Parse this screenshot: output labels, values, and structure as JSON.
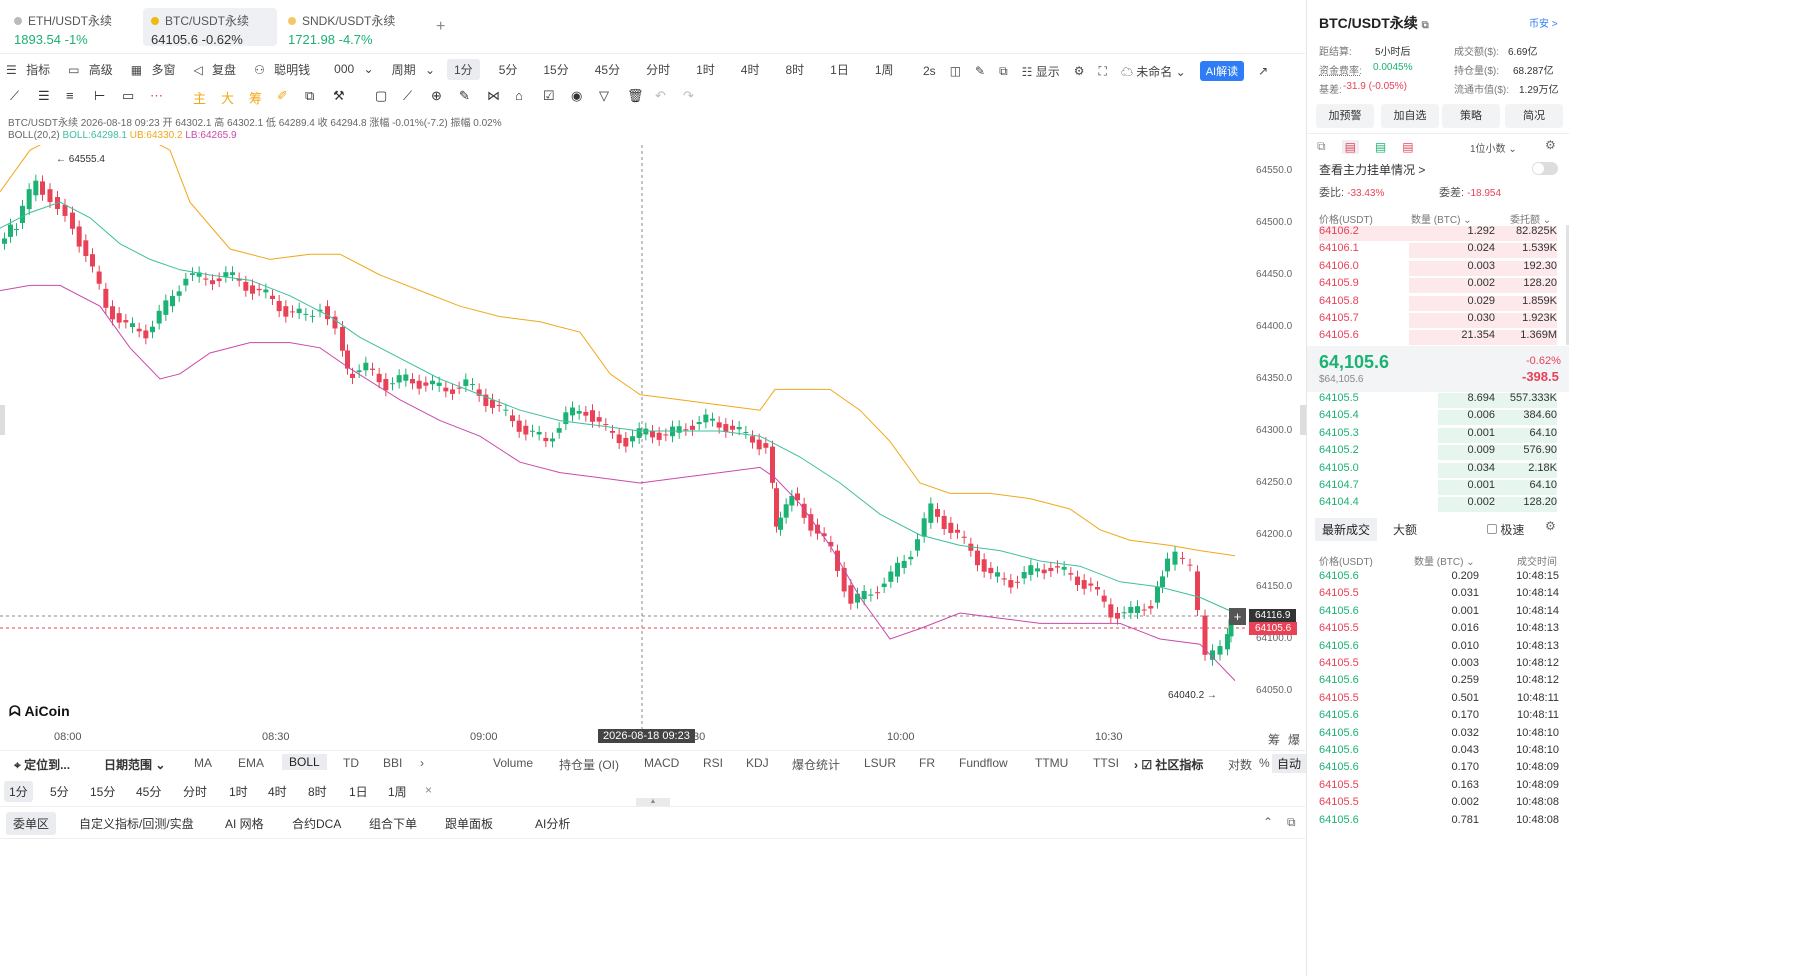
{
  "tabs": [
    {
      "symbol": "ETH/USDT永续",
      "price": "1893.54",
      "change": "-1%",
      "color": "#1bb273"
    },
    {
      "symbol": "BTC/USDT永续",
      "price": "64105.6",
      "change": "-0.62%",
      "color": "#333333"
    },
    {
      "symbol": "SNDK/USDT永续",
      "price": "1721.98",
      "change": "-4.7%",
      "color": "#1bb273"
    }
  ],
  "add_tab": "+",
  "toolbar": {
    "indicator": "指标",
    "advanced": "高级",
    "multi": "多窗",
    "replay": "复盘",
    "smart": "聪明钱",
    "smart_val": "000",
    "period": "周期",
    "periods": [
      "1分",
      "5分",
      "15分",
      "45分",
      "分时",
      "1时",
      "4时",
      "8时",
      "1日",
      "1周"
    ],
    "selected": "1分",
    "interval": "2s",
    "display": "显示",
    "unnamed": "未命名",
    "ai": "AI解读"
  },
  "legend": {
    "line1": "BTC/USDT永续 2026-08-18 09:23 开 64302.1 高 64302.1 低 64289.4 收 64294.8 涨幅 -0.01%(-7.2) 振幅 0.02%",
    "boll_name": "BOLL(20,2)",
    "boll": "BOLL:64298.1",
    "ub": "UB:64330.2",
    "lb": "LB:64265.9"
  },
  "y_ticks": [
    "64550.0",
    "64500.0",
    "64450.0",
    "64400.0",
    "64350.0",
    "64300.0",
    "64250.0",
    "64200.0",
    "64150.0",
    "64100.0",
    "64050.0"
  ],
  "x_ticks": [
    "08:00",
    "08:30",
    "09:00",
    "10:00",
    "10:30"
  ],
  "cursor_time": "2026-08-18 09:23",
  "cursor_time_tail": ":30",
  "high_label": "← 64555.4",
  "low_label": "64040.2 →",
  "price_tag_1": "64116.9",
  "price_tag_2": "64105.6",
  "logo": "AiCoin",
  "corner": [
    "筹",
    "爆"
  ],
  "bottom": {
    "locate": "定位到...",
    "range": "日期范围",
    "left_indicators": [
      "MA",
      "EMA",
      "BOLL",
      "TD",
      "BBI"
    ],
    "right_indicators": [
      "Volume",
      "持仓量 (OI)",
      "MACD",
      "RSI",
      "KDJ",
      "爆仓统计",
      "LSUR",
      "FR",
      "Fundflow",
      "TTMU",
      "TTSI"
    ],
    "community": "社区指标",
    "log": "对数",
    "pct": "%",
    "auto": "自动",
    "periods": [
      "1分",
      "5分",
      "15分",
      "45分",
      "分时",
      "1时",
      "4时",
      "8时",
      "1日",
      "1周"
    ],
    "tabs": [
      "委单区",
      "自定义指标/回测/实盘",
      "AI 网格",
      "合约DCA",
      "组合下单",
      "跟单面板",
      "AI分析"
    ]
  },
  "right": {
    "title": "BTC/USDT永续",
    "exchange": "币安 >",
    "stats": [
      [
        "距结算:",
        "5小时后"
      ],
      [
        "成交额($):",
        "6.69亿"
      ],
      [
        "资金费率:",
        "0.0045%"
      ],
      [
        "持仓量($):",
        "68.287亿"
      ],
      [
        "基差:",
        "-31.9 (-0.05%)"
      ],
      [
        "流通市值($):",
        "1.29万亿"
      ]
    ],
    "buttons": [
      "加预警",
      "加自选",
      "策略",
      "简况"
    ],
    "decimals": "1位小数",
    "view_main": "查看主力挂单情况 >",
    "ratio_k": "委比:",
    "ratio_v": "-33.43%",
    "diff_k": "委差:",
    "diff_v": "-18.954",
    "ob_headers": [
      "价格(USDT)",
      "数量 (BTC)",
      "委托额"
    ],
    "asks": [
      {
        "p": "64106.2",
        "q": "1.292",
        "a": "82.825K",
        "w": 1.0
      },
      {
        "p": "64106.1",
        "q": "0.024",
        "a": "1.539K",
        "w": 0.62
      },
      {
        "p": "64106.0",
        "q": "0.003",
        "a": "192.30",
        "w": 0.62
      },
      {
        "p": "64105.9",
        "q": "0.002",
        "a": "128.20",
        "w": 0.62
      },
      {
        "p": "64105.8",
        "q": "0.029",
        "a": "1.859K",
        "w": 0.62
      },
      {
        "p": "64105.7",
        "q": "0.030",
        "a": "1.923K",
        "w": 0.62
      },
      {
        "p": "64105.6",
        "q": "21.354",
        "a": "1.369M",
        "w": 0.62
      }
    ],
    "last": "64,105.6",
    "last_sub": "$64,105.6",
    "chg_pct": "-0.62%",
    "chg": "-398.5",
    "bids": [
      {
        "p": "64105.5",
        "q": "8.694",
        "a": "557.333K",
        "w": 0.5
      },
      {
        "p": "64105.4",
        "q": "0.006",
        "a": "384.60",
        "w": 0.5
      },
      {
        "p": "64105.3",
        "q": "0.001",
        "a": "64.10",
        "w": 0.5
      },
      {
        "p": "64105.2",
        "q": "0.009",
        "a": "576.90",
        "w": 0.5
      },
      {
        "p": "64105.0",
        "q": "0.034",
        "a": "2.18K",
        "w": 0.5
      },
      {
        "p": "64104.7",
        "q": "0.001",
        "a": "64.10",
        "w": 0.5
      },
      {
        "p": "64104.4",
        "q": "0.002",
        "a": "128.20",
        "w": 0.5
      }
    ],
    "trade_tabs": [
      "最新成交",
      "大额"
    ],
    "fast": "极速",
    "trade_headers": [
      "价格(USDT)",
      "数量 (BTC)",
      "成交时间"
    ],
    "trades": [
      {
        "p": "64105.6",
        "q": "0.209",
        "t": "10:48:15",
        "s": "g"
      },
      {
        "p": "64105.5",
        "q": "0.031",
        "t": "10:48:14",
        "s": "r"
      },
      {
        "p": "64105.6",
        "q": "0.001",
        "t": "10:48:14",
        "s": "g"
      },
      {
        "p": "64105.5",
        "q": "0.016",
        "t": "10:48:13",
        "s": "r"
      },
      {
        "p": "64105.6",
        "q": "0.010",
        "t": "10:48:13",
        "s": "g"
      },
      {
        "p": "64105.5",
        "q": "0.003",
        "t": "10:48:12",
        "s": "r"
      },
      {
        "p": "64105.6",
        "q": "0.259",
        "t": "10:48:12",
        "s": "g"
      },
      {
        "p": "64105.5",
        "q": "0.501",
        "t": "10:48:11",
        "s": "r"
      },
      {
        "p": "64105.6",
        "q": "0.170",
        "t": "10:48:11",
        "s": "g"
      },
      {
        "p": "64105.6",
        "q": "0.032",
        "t": "10:48:10",
        "s": "g"
      },
      {
        "p": "64105.6",
        "q": "0.043",
        "t": "10:48:10",
        "s": "g"
      },
      {
        "p": "64105.6",
        "q": "0.170",
        "t": "10:48:09",
        "s": "g"
      },
      {
        "p": "64105.5",
        "q": "0.163",
        "t": "10:48:09",
        "s": "r"
      },
      {
        "p": "64105.5",
        "q": "0.002",
        "t": "10:48:08",
        "s": "r"
      },
      {
        "p": "64105.6",
        "q": "0.781",
        "t": "10:48:08",
        "s": "g"
      }
    ]
  },
  "colors": {
    "up": "#1bb273",
    "down": "#e84257",
    "mid": "#3dbf9f",
    "ub": "#f0a818",
    "lb": "#c84aa8"
  }
}
